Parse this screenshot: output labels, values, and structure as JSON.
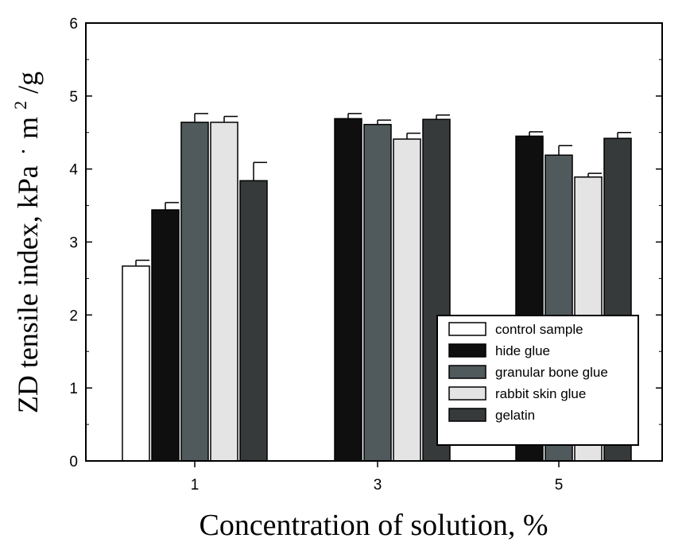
{
  "chart_data": {
    "type": "bar",
    "xlabel": "Concentration of solution, %",
    "ylabel_main": "ZD tensile index, kPa",
    "ylabel_unit_base": "m",
    "ylabel_unit_exp": "2",
    "ylabel_unit_tail": "/g",
    "ylim": [
      0,
      6
    ],
    "yticks": [
      "0",
      "1",
      "2",
      "3",
      "4",
      "5",
      "6"
    ],
    "categories": [
      "1",
      "3",
      "5"
    ],
    "grid": false,
    "legend_position": "bottom-right",
    "series": [
      {
        "name": "control sample",
        "color": "#ffffff",
        "values": [
          2.67,
          null,
          null
        ],
        "errors": [
          0.08,
          null,
          null
        ]
      },
      {
        "name": "hide glue",
        "color": "#0f0f0f",
        "values": [
          3.44,
          4.69,
          4.45
        ],
        "errors": [
          0.1,
          0.07,
          0.06
        ]
      },
      {
        "name": "granular bone glue",
        "color": "#505a5c",
        "values": [
          4.64,
          4.61,
          4.19
        ],
        "errors": [
          0.12,
          0.06,
          0.13
        ]
      },
      {
        "name": "rabbit skin glue",
        "color": "#e4e4e4",
        "values": [
          4.64,
          4.41,
          3.89
        ],
        "errors": [
          0.08,
          0.08,
          0.05
        ]
      },
      {
        "name": "gelatin",
        "color": "#363a3b",
        "values": [
          3.84,
          4.68,
          4.42
        ],
        "errors": [
          0.25,
          0.06,
          0.08
        ]
      }
    ]
  }
}
